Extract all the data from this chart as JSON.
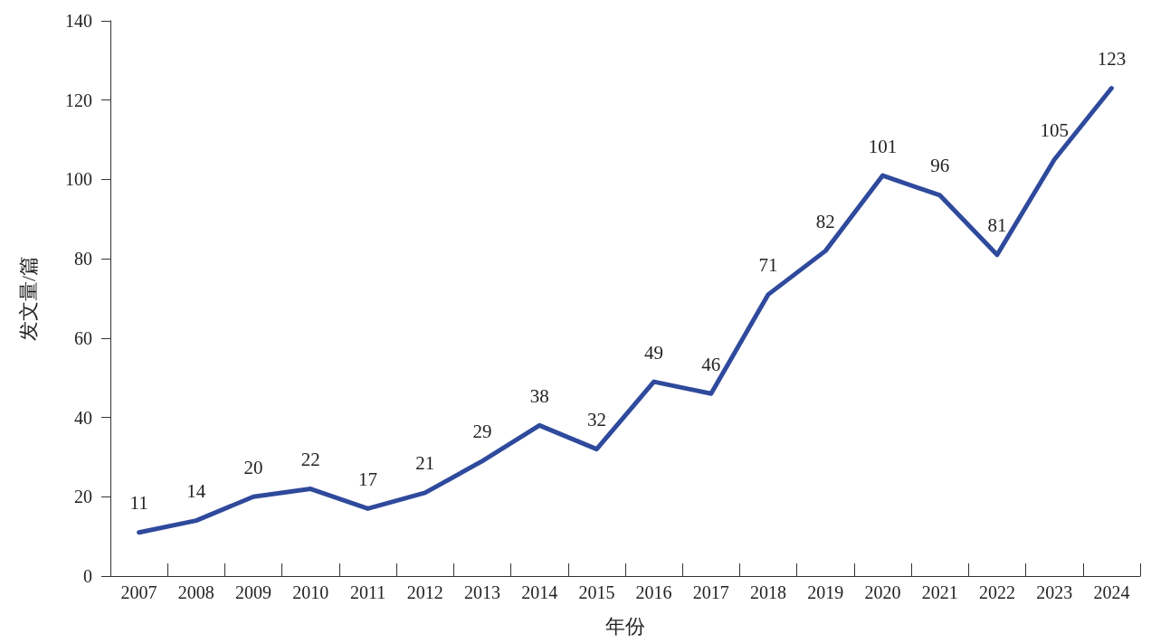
{
  "chart_data": {
    "type": "line",
    "xlabel": "年份",
    "ylabel": "发文量/篇",
    "categories": [
      "2007",
      "2008",
      "2009",
      "2010",
      "2011",
      "2012",
      "2013",
      "2014",
      "2015",
      "2016",
      "2017",
      "2018",
      "2019",
      "2020",
      "2021",
      "2022",
      "2023",
      "2024"
    ],
    "series": [
      {
        "color": "#2f4a9c",
        "values": [
          11,
          14,
          20,
          22,
          17,
          21,
          29,
          38,
          32,
          49,
          46,
          71,
          82,
          101,
          96,
          81,
          105,
          123
        ]
      }
    ],
    "ylim": [
      0,
      140
    ],
    "yticks": [
      0,
      20,
      40,
      60,
      80,
      100,
      120,
      140
    ],
    "data_labels": true,
    "grid": false,
    "marker": "none",
    "line_style": "solid"
  }
}
